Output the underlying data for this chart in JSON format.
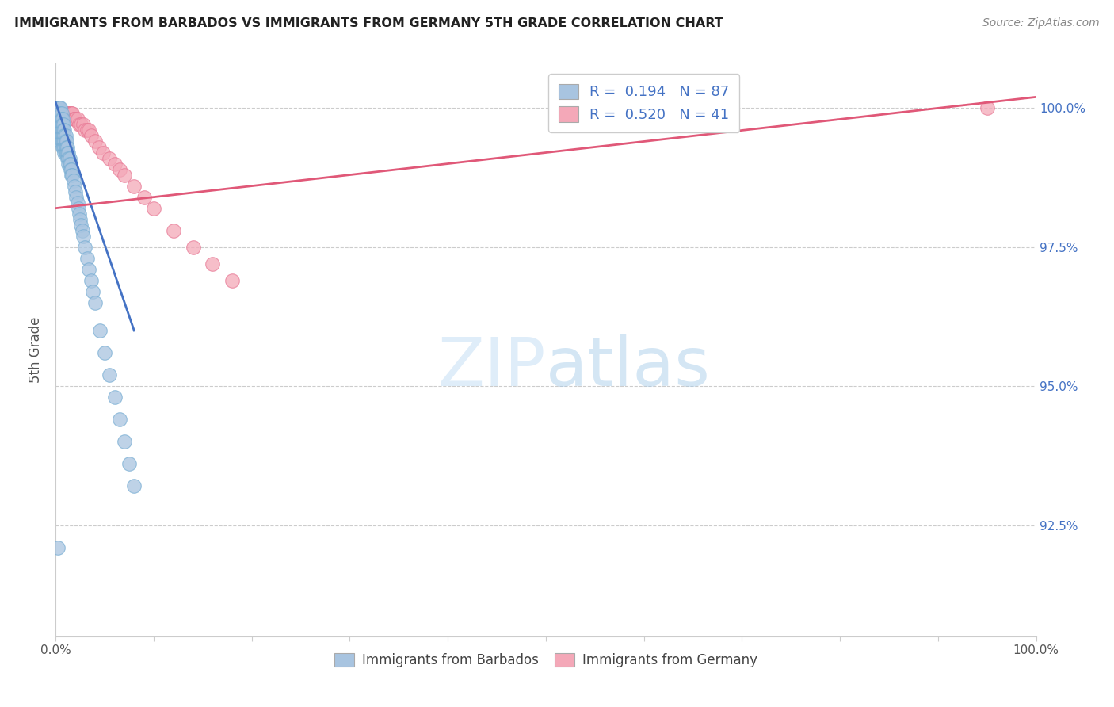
{
  "title": "IMMIGRANTS FROM BARBADOS VS IMMIGRANTS FROM GERMANY 5TH GRADE CORRELATION CHART",
  "source": "Source: ZipAtlas.com",
  "ylabel": "5th Grade",
  "ytick_labels": [
    "92.5%",
    "95.0%",
    "97.5%",
    "100.0%"
  ],
  "ytick_values": [
    0.925,
    0.95,
    0.975,
    1.0
  ],
  "xmin": 0.0,
  "xmax": 1.0,
  "ymin": 0.905,
  "ymax": 1.008,
  "barbados_color": "#a8c4e0",
  "barbados_edge_color": "#7aafd4",
  "germany_color": "#f4a8b8",
  "germany_edge_color": "#e87a96",
  "barbados_line_color": "#4472C4",
  "germany_line_color": "#e05878",
  "watermark_color": "#d0e8f8",
  "legend1_label": "R =  0.194   N = 87",
  "legend2_label": "R =  0.520   N = 41",
  "legend_label_barbados": "Immigrants from Barbados",
  "legend_label_germany": "Immigrants from Germany",
  "barbados_R": 0.194,
  "germany_R": 0.52,
  "barbados_line_x0": 0.0,
  "barbados_line_y0": 1.001,
  "barbados_line_x1": 0.08,
  "barbados_line_y1": 0.96,
  "germany_line_x0": 0.0,
  "germany_line_y0": 0.982,
  "germany_line_x1": 1.0,
  "germany_line_y1": 1.002,
  "barbados_x": [
    0.002,
    0.002,
    0.003,
    0.003,
    0.003,
    0.003,
    0.003,
    0.004,
    0.004,
    0.004,
    0.004,
    0.004,
    0.005,
    0.005,
    0.005,
    0.005,
    0.005,
    0.005,
    0.005,
    0.006,
    0.006,
    0.006,
    0.006,
    0.006,
    0.006,
    0.007,
    0.007,
    0.007,
    0.007,
    0.007,
    0.007,
    0.008,
    0.008,
    0.008,
    0.008,
    0.008,
    0.009,
    0.009,
    0.009,
    0.009,
    0.009,
    0.01,
    0.01,
    0.01,
    0.01,
    0.011,
    0.011,
    0.011,
    0.012,
    0.012,
    0.012,
    0.013,
    0.013,
    0.013,
    0.014,
    0.014,
    0.015,
    0.015,
    0.016,
    0.016,
    0.017,
    0.018,
    0.019,
    0.02,
    0.021,
    0.022,
    0.023,
    0.024,
    0.025,
    0.026,
    0.027,
    0.028,
    0.03,
    0.032,
    0.034,
    0.036,
    0.038,
    0.04,
    0.045,
    0.05,
    0.055,
    0.06,
    0.065,
    0.07,
    0.075,
    0.08,
    0.002
  ],
  "barbados_y": [
    1.0,
    0.999,
    1.0,
    0.999,
    0.998,
    0.997,
    0.996,
    1.0,
    0.999,
    0.998,
    0.997,
    0.996,
    1.0,
    0.999,
    0.998,
    0.997,
    0.996,
    0.995,
    0.994,
    0.999,
    0.998,
    0.997,
    0.996,
    0.995,
    0.994,
    0.998,
    0.997,
    0.996,
    0.995,
    0.994,
    0.993,
    0.997,
    0.996,
    0.995,
    0.994,
    0.993,
    0.996,
    0.995,
    0.994,
    0.993,
    0.992,
    0.995,
    0.994,
    0.993,
    0.992,
    0.994,
    0.993,
    0.992,
    0.993,
    0.992,
    0.991,
    0.992,
    0.991,
    0.99,
    0.991,
    0.99,
    0.99,
    0.989,
    0.989,
    0.988,
    0.988,
    0.987,
    0.986,
    0.985,
    0.984,
    0.983,
    0.982,
    0.981,
    0.98,
    0.979,
    0.978,
    0.977,
    0.975,
    0.973,
    0.971,
    0.969,
    0.967,
    0.965,
    0.96,
    0.956,
    0.952,
    0.948,
    0.944,
    0.94,
    0.936,
    0.932,
    0.921
  ],
  "germany_x": [
    0.003,
    0.004,
    0.005,
    0.006,
    0.007,
    0.008,
    0.009,
    0.01,
    0.011,
    0.012,
    0.013,
    0.014,
    0.015,
    0.016,
    0.017,
    0.018,
    0.019,
    0.02,
    0.022,
    0.024,
    0.026,
    0.028,
    0.03,
    0.032,
    0.034,
    0.036,
    0.04,
    0.044,
    0.048,
    0.055,
    0.06,
    0.065,
    0.07,
    0.08,
    0.09,
    0.1,
    0.12,
    0.14,
    0.16,
    0.18,
    0.95
  ],
  "germany_y": [
    0.999,
    0.999,
    0.999,
    0.999,
    0.999,
    0.999,
    0.999,
    0.999,
    0.999,
    0.999,
    0.999,
    0.999,
    0.999,
    0.999,
    0.999,
    0.998,
    0.998,
    0.998,
    0.998,
    0.997,
    0.997,
    0.997,
    0.996,
    0.996,
    0.996,
    0.995,
    0.994,
    0.993,
    0.992,
    0.991,
    0.99,
    0.989,
    0.988,
    0.986,
    0.984,
    0.982,
    0.978,
    0.975,
    0.972,
    0.969,
    1.0
  ]
}
